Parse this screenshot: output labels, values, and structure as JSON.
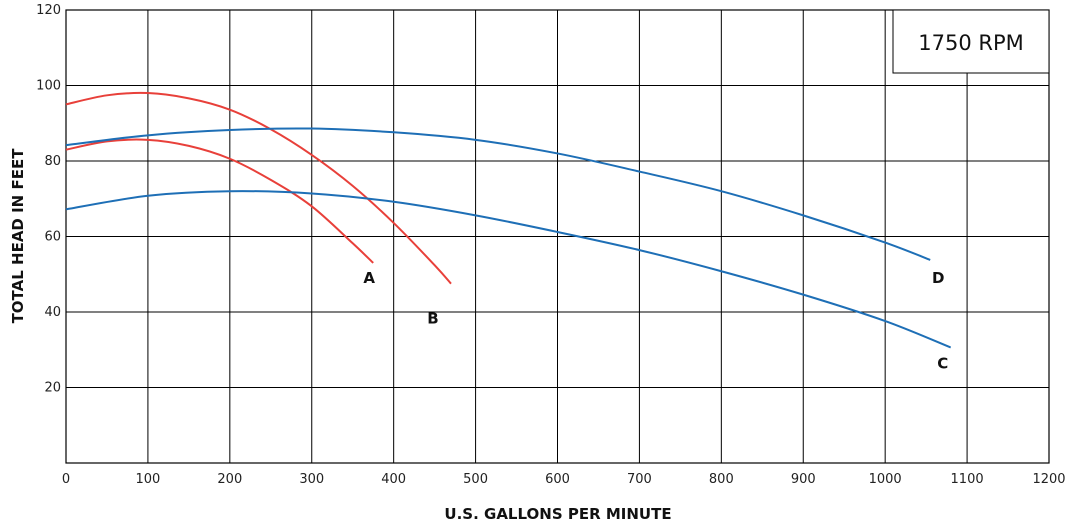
{
  "chart_data": {
    "type": "line",
    "xlabel": "U.S. GALLONS PER MINUTE",
    "ylabel": "TOTAL HEAD IN FEET",
    "annotation": "1750 RPM",
    "xlim": [
      0,
      1200
    ],
    "ylim": [
      0,
      120
    ],
    "x_ticks": [
      0,
      100,
      200,
      300,
      400,
      500,
      600,
      700,
      800,
      900,
      1000,
      1100,
      1200
    ],
    "y_ticks": [
      20,
      40,
      60,
      80,
      100,
      120
    ],
    "grid": true,
    "series": [
      {
        "name": "A",
        "color": "#e8403a",
        "x": [
          0,
          50,
          100,
          150,
          200,
          250,
          300,
          350,
          375
        ],
        "y": [
          83,
          85.2,
          85.6,
          84,
          80.6,
          75,
          68,
          58.2,
          53
        ]
      },
      {
        "name": "B",
        "color": "#e8403a",
        "x": [
          0,
          50,
          100,
          150,
          200,
          250,
          300,
          350,
          400,
          450,
          470
        ],
        "y": [
          95,
          97.4,
          98,
          96.6,
          93.6,
          88.4,
          81.6,
          73.4,
          63.6,
          52.4,
          47.5
        ]
      },
      {
        "name": "C",
        "color": "#1e6fb6",
        "x": [
          0,
          100,
          200,
          300,
          400,
          500,
          600,
          700,
          800,
          900,
          1000,
          1080
        ],
        "y": [
          67.2,
          70.8,
          72,
          71.4,
          69.2,
          65.6,
          61.2,
          56.4,
          50.8,
          44.6,
          37.6,
          30.6
        ]
      },
      {
        "name": "D",
        "color": "#1e6fb6",
        "x": [
          0,
          100,
          200,
          300,
          400,
          500,
          600,
          700,
          800,
          900,
          1000,
          1055
        ],
        "y": [
          84.2,
          86.8,
          88.2,
          88.6,
          87.6,
          85.6,
          82,
          77.2,
          72,
          65.6,
          58.4,
          53.8
        ]
      }
    ]
  }
}
